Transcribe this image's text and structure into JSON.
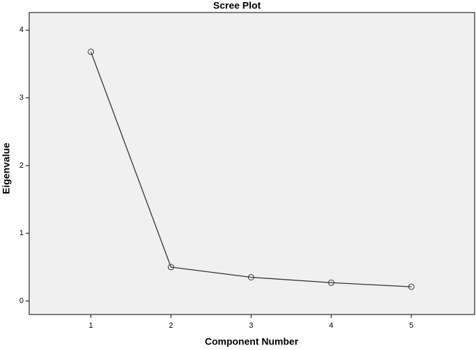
{
  "chart_data": {
    "type": "line",
    "title": "Scree Plot",
    "x_label": "Component Number",
    "y_label": "Eigenvalue",
    "x": [
      1,
      2,
      3,
      4,
      5
    ],
    "series": [
      {
        "color": "#333333",
        "values": [
          3.68,
          0.5,
          0.35,
          0.27,
          0.21
        ]
      }
    ],
    "xlim": [
      0.23,
      5.79
    ],
    "xticks": [
      1,
      2,
      3,
      4,
      5
    ],
    "ylim": [
      -0.2,
      4.26
    ],
    "yticks": [
      0,
      1,
      2,
      3,
      4
    ],
    "grid": false,
    "markers": true
  }
}
